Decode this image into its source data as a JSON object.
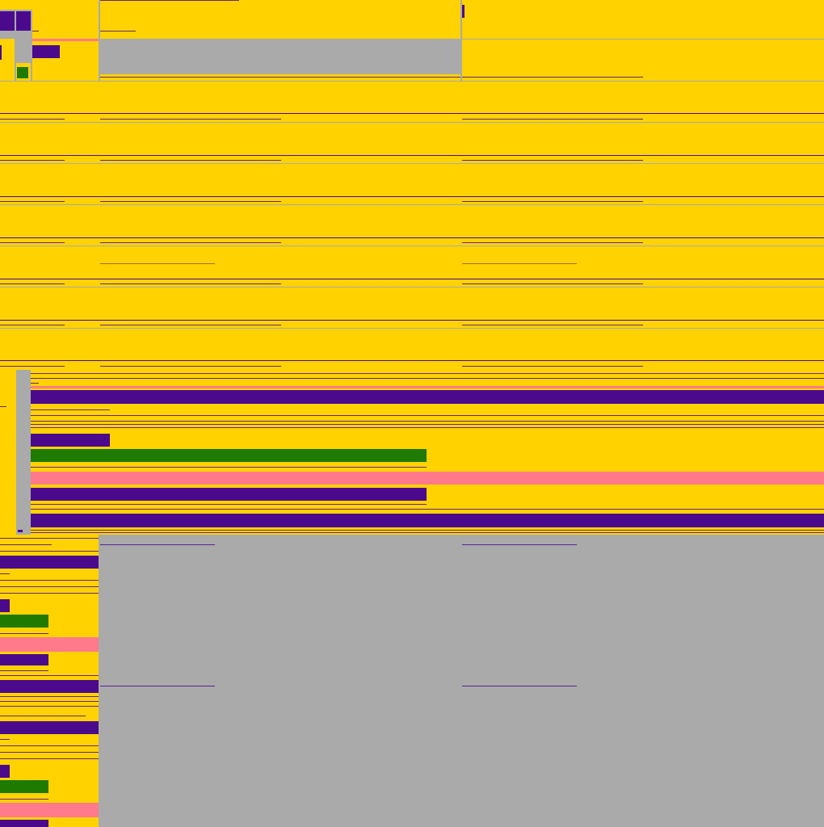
{
  "colors": {
    "background": "#aaaaaa",
    "panel": "#ffd200",
    "accent": "#4b0a8c",
    "success": "#1e7a00",
    "highlight": "#ff7a8a"
  },
  "icons": {
    "left_badge": "square-icon",
    "status_badge": "square-icon"
  }
}
